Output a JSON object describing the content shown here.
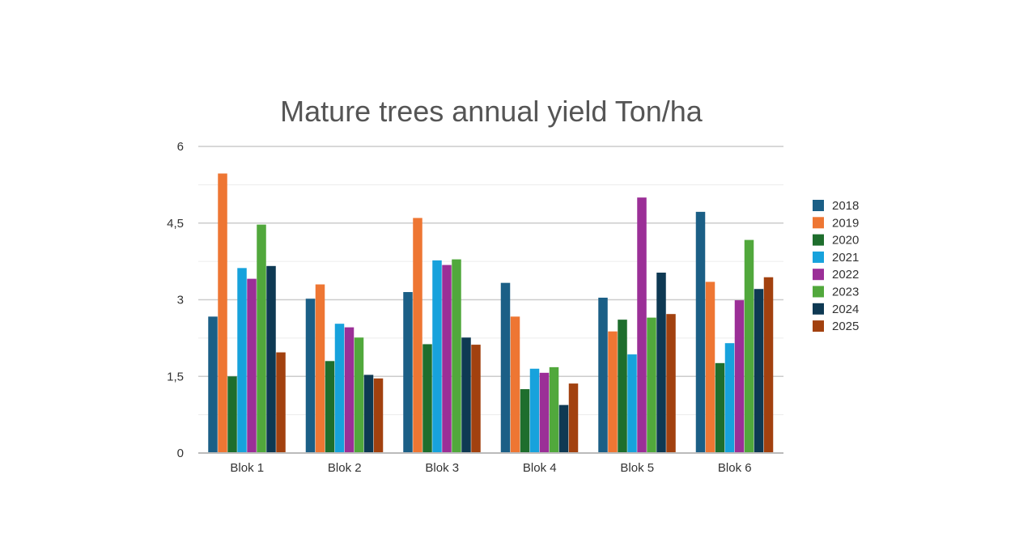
{
  "chart_data": {
    "type": "bar",
    "title": "Mature trees annual yield Ton/ha",
    "xlabel": "",
    "ylabel": "",
    "categories": [
      "Blok 1",
      "Blok 2",
      "Blok 3",
      "Blok 4",
      "Blok 5",
      "Blok 6"
    ],
    "ylim": [
      0,
      6
    ],
    "yticks": [
      {
        "value": 0,
        "label": "0"
      },
      {
        "value": 1.5,
        "label": "1,5"
      },
      {
        "value": 3,
        "label": "3"
      },
      {
        "value": 4.5,
        "label": "4,5"
      },
      {
        "value": 6,
        "label": "6"
      }
    ],
    "grid": true,
    "legend_position": "right",
    "series": [
      {
        "name": "2018",
        "color": "#1b5f86",
        "values": [
          2.67,
          3.02,
          3.15,
          3.33,
          3.04,
          4.72
        ]
      },
      {
        "name": "2019",
        "color": "#ee7633",
        "values": [
          5.47,
          3.3,
          4.6,
          2.67,
          2.38,
          3.35
        ]
      },
      {
        "name": "2020",
        "color": "#1e6e2d",
        "values": [
          1.5,
          1.8,
          2.13,
          1.25,
          2.61,
          1.76
        ]
      },
      {
        "name": "2021",
        "color": "#17a2dc",
        "values": [
          3.62,
          2.53,
          3.77,
          1.65,
          1.93,
          2.15
        ]
      },
      {
        "name": "2022",
        "color": "#9b2f97",
        "values": [
          3.41,
          2.46,
          3.68,
          1.57,
          5.0,
          2.99
        ]
      },
      {
        "name": "2023",
        "color": "#51a83c",
        "values": [
          4.47,
          2.26,
          3.79,
          1.68,
          2.65,
          4.17
        ]
      },
      {
        "name": "2024",
        "color": "#0e3953",
        "values": [
          3.66,
          1.53,
          2.26,
          0.94,
          3.53,
          3.21
        ]
      },
      {
        "name": "2025",
        "color": "#a2410f",
        "values": [
          1.97,
          1.46,
          2.12,
          1.36,
          2.72,
          3.44
        ]
      }
    ]
  }
}
